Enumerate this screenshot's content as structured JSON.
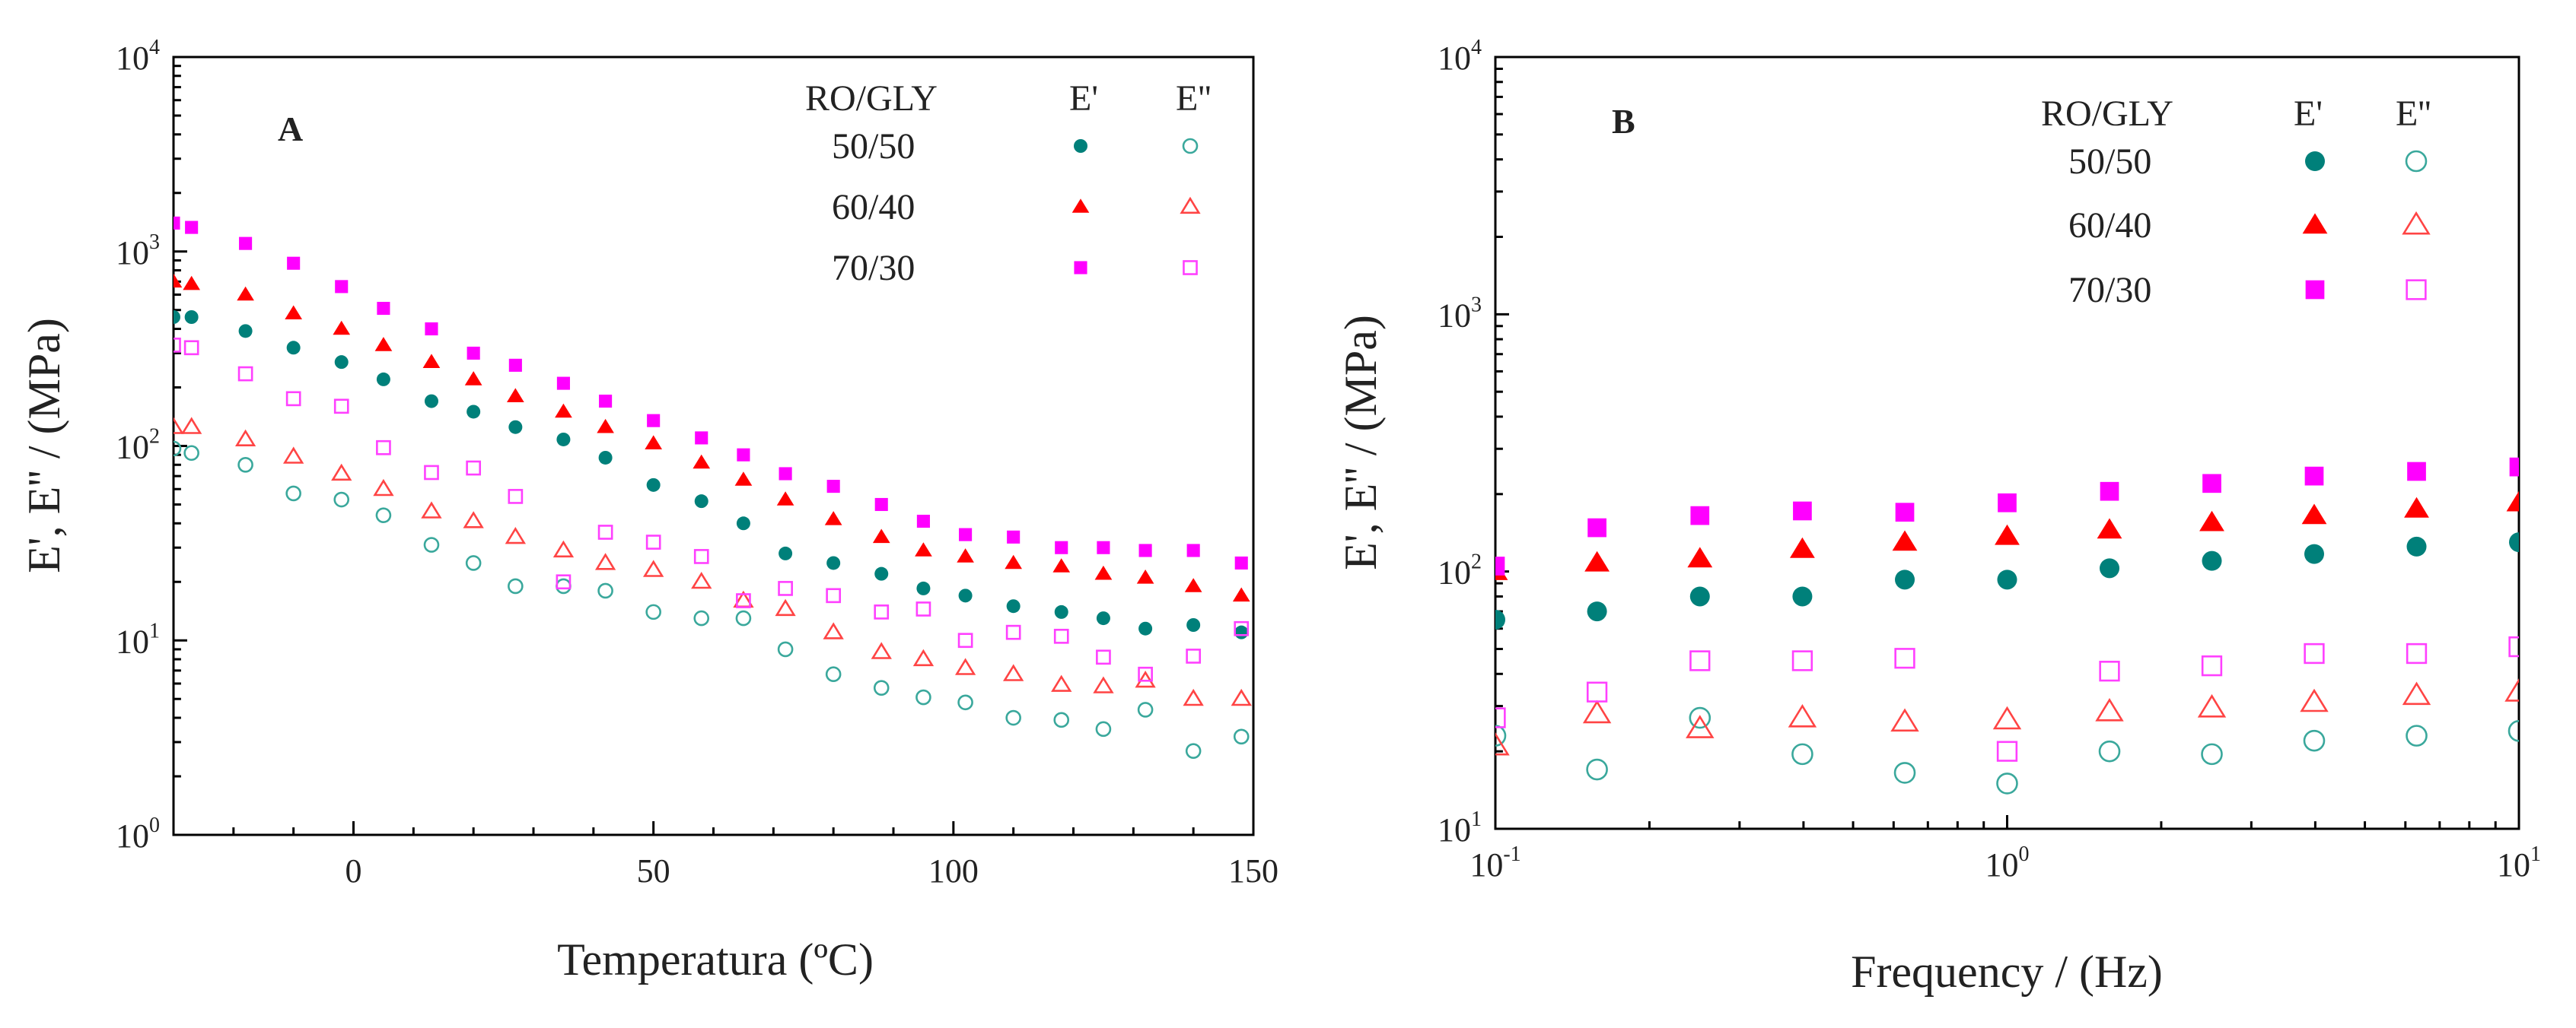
{
  "chart_data": [
    {
      "type": "scatter",
      "panel_label": "A",
      "xlabel": "Temperatura (ºC)",
      "ylabel": "E', E'' / (MPa)",
      "xlim": [
        -30,
        150
      ],
      "ylim": [
        1,
        10000
      ],
      "yscale": "log",
      "xticks": [
        0,
        50,
        100,
        150
      ],
      "yticks": [
        {
          "base": "10",
          "exp": "0",
          "value": 1
        },
        {
          "base": "10",
          "exp": "1",
          "value": 10
        },
        {
          "base": "10",
          "exp": "2",
          "value": 100
        },
        {
          "base": "10",
          "exp": "3",
          "value": 1000
        },
        {
          "base": "10",
          "exp": "4",
          "value": 10000
        }
      ],
      "legend": {
        "header": [
          "RO/GLY",
          "E'",
          "E''"
        ],
        "placement": "top-right",
        "rows": [
          "50/50",
          "60/40",
          "70/30"
        ]
      },
      "series": [
        {
          "composition": "50/50",
          "modulus": "E'",
          "marker": "circle",
          "filled": true,
          "color": "#00807a",
          "x": [
            -30,
            -27,
            -18,
            -10,
            -2,
            5,
            13,
            20,
            27,
            35,
            42,
            50,
            58,
            65,
            72,
            80,
            88,
            95,
            102,
            110,
            118,
            125,
            132,
            140,
            148
          ],
          "y": [
            460,
            460,
            390,
            320,
            270,
            220,
            170,
            150,
            125,
            108,
            87,
            63,
            52,
            40,
            28,
            25,
            22,
            18.5,
            17,
            15,
            14,
            13,
            11.5,
            12,
            11
          ]
        },
        {
          "composition": "50/50",
          "modulus": "E''",
          "marker": "circle",
          "filled": false,
          "color": "#3aa89c",
          "x": [
            -30,
            -27,
            -18,
            -10,
            -2,
            5,
            13,
            20,
            27,
            35,
            42,
            50,
            58,
            65,
            72,
            80,
            88,
            95,
            102,
            110,
            118,
            125,
            132,
            140,
            148
          ],
          "y": [
            97,
            92,
            80,
            57,
            53,
            44,
            31,
            25,
            19,
            19,
            18,
            14,
            13,
            13,
            9,
            6.7,
            5.7,
            5.1,
            4.8,
            4,
            3.9,
            3.5,
            4.4,
            2.7,
            3.2
          ]
        },
        {
          "composition": "60/40",
          "modulus": "E'",
          "marker": "triangle",
          "filled": true,
          "color": "#ff0000",
          "x": [
            -30,
            -27,
            -18,
            -10,
            -2,
            5,
            13,
            20,
            27,
            35,
            42,
            50,
            58,
            65,
            72,
            80,
            88,
            95,
            102,
            110,
            118,
            125,
            132,
            140,
            148
          ],
          "y": [
            700,
            680,
            600,
            480,
            400,
            330,
            270,
            220,
            180,
            150,
            125,
            103,
            82,
            67,
            53,
            42,
            34,
            29,
            27,
            25,
            24,
            22,
            21,
            19,
            17
          ]
        },
        {
          "composition": "60/40",
          "modulus": "E''",
          "marker": "triangle",
          "filled": false,
          "color": "#ff4444",
          "x": [
            -30,
            -27,
            -18,
            -10,
            -2,
            5,
            13,
            20,
            27,
            35,
            42,
            50,
            58,
            65,
            72,
            80,
            88,
            95,
            102,
            110,
            118,
            125,
            132,
            140,
            148
          ],
          "y": [
            125,
            125,
            108,
            88,
            72,
            60,
            46,
            41,
            34,
            29,
            25,
            23,
            20,
            16,
            14.5,
            11,
            8.7,
            8,
            7.2,
            6.7,
            5.9,
            5.8,
            6.2,
            5,
            5
          ]
        },
        {
          "composition": "70/30",
          "modulus": "E'",
          "marker": "square",
          "filled": true,
          "color": "#ff00ff",
          "x": [
            -30,
            -27,
            -18,
            -10,
            -2,
            5,
            13,
            20,
            27,
            35,
            42,
            50,
            58,
            65,
            72,
            80,
            88,
            95,
            102,
            110,
            118,
            125,
            132,
            140,
            148
          ],
          "y": [
            1400,
            1330,
            1100,
            870,
            660,
            510,
            400,
            300,
            260,
            210,
            170,
            135,
            110,
            90,
            72,
            62,
            50,
            41,
            35,
            34,
            30,
            30,
            29,
            29,
            25
          ]
        },
        {
          "composition": "70/30",
          "modulus": "E''",
          "marker": "square",
          "filled": false,
          "color": "#ff40ff",
          "x": [
            -30,
            -27,
            -18,
            -10,
            -2,
            5,
            13,
            20,
            27,
            35,
            42,
            50,
            58,
            65,
            72,
            80,
            88,
            95,
            102,
            110,
            118,
            125,
            132,
            140,
            148
          ],
          "y": [
            330,
            320,
            235,
            175,
            160,
            98,
            73,
            77,
            55,
            20,
            36,
            32,
            27,
            16,
            18.5,
            17,
            14,
            14.5,
            10,
            11,
            10.5,
            8.2,
            6.7,
            8.3,
            11.5
          ]
        }
      ]
    },
    {
      "type": "scatter",
      "panel_label": "B",
      "xlabel": "Frequency / (Hz)",
      "ylabel": "E', E'' / (MPa)",
      "xlim": [
        0.1,
        10
      ],
      "ylim": [
        10,
        10000
      ],
      "xscale": "log",
      "yscale": "log",
      "xticks": [
        {
          "base": "10",
          "exp": "-1",
          "value": 0.1
        },
        {
          "base": "10",
          "exp": "0",
          "value": 1
        },
        {
          "base": "10",
          "exp": "1",
          "value": 10
        }
      ],
      "yticks": [
        {
          "base": "10",
          "exp": "1",
          "value": 10
        },
        {
          "base": "10",
          "exp": "2",
          "value": 100
        },
        {
          "base": "10",
          "exp": "3",
          "value": 1000
        },
        {
          "base": "10",
          "exp": "4",
          "value": 10000
        }
      ],
      "legend": {
        "header": [
          "RO/GLY",
          "E'",
          "E''"
        ],
        "placement": "top-right",
        "rows": [
          "50/50",
          "60/40",
          "70/30"
        ]
      },
      "series": [
        {
          "composition": "50/50",
          "modulus": "E'",
          "marker": "circle",
          "filled": true,
          "color": "#00807a",
          "x": [
            0.1,
            0.158,
            0.251,
            0.398,
            0.631,
            1,
            1.585,
            2.512,
            3.981,
            6.31,
            10
          ],
          "y": [
            65,
            70,
            80,
            80,
            93,
            93,
            103,
            110,
            117,
            125,
            130
          ]
        },
        {
          "composition": "50/50",
          "modulus": "E''",
          "marker": "circle",
          "filled": false,
          "color": "#3aa89c",
          "x": [
            0.1,
            0.158,
            0.251,
            0.398,
            0.631,
            1,
            1.585,
            2.512,
            3.981,
            6.31,
            10
          ],
          "y": [
            23,
            17,
            27,
            19.5,
            16.5,
            15,
            20,
            19.5,
            22,
            23,
            24
          ]
        },
        {
          "composition": "60/40",
          "modulus": "E'",
          "marker": "triangle",
          "filled": true,
          "color": "#ff0000",
          "x": [
            0.1,
            0.158,
            0.251,
            0.398,
            0.631,
            1,
            1.585,
            2.512,
            3.981,
            6.31,
            10
          ],
          "y": [
            100,
            108,
            112,
            122,
            130,
            137,
            145,
            155,
            165,
            175,
            185
          ]
        },
        {
          "composition": "60/40",
          "modulus": "E''",
          "marker": "triangle",
          "filled": false,
          "color": "#ff4444",
          "x": [
            0.1,
            0.158,
            0.251,
            0.398,
            0.631,
            1,
            1.585,
            2.512,
            3.981,
            6.31,
            10
          ],
          "y": [
            21,
            28,
            24.5,
            27,
            26,
            26.5,
            28.5,
            29.5,
            31,
            33,
            34
          ]
        },
        {
          "composition": "70/30",
          "modulus": "E'",
          "marker": "square",
          "filled": true,
          "color": "#ff00ff",
          "x": [
            0.1,
            0.158,
            0.251,
            0.398,
            0.631,
            1,
            1.585,
            2.512,
            3.981,
            6.31,
            10
          ],
          "y": [
            105,
            148,
            165,
            172,
            170,
            185,
            205,
            220,
            235,
            245,
            255
          ]
        },
        {
          "composition": "70/30",
          "modulus": "E''",
          "marker": "square",
          "filled": false,
          "color": "#ff40ff",
          "x": [
            0.1,
            0.158,
            0.251,
            0.398,
            0.631,
            1,
            1.585,
            2.512,
            3.981,
            6.31,
            10
          ],
          "y": [
            27,
            34,
            45,
            45,
            46,
            20,
            41,
            43,
            48,
            48,
            51
          ]
        }
      ]
    }
  ]
}
